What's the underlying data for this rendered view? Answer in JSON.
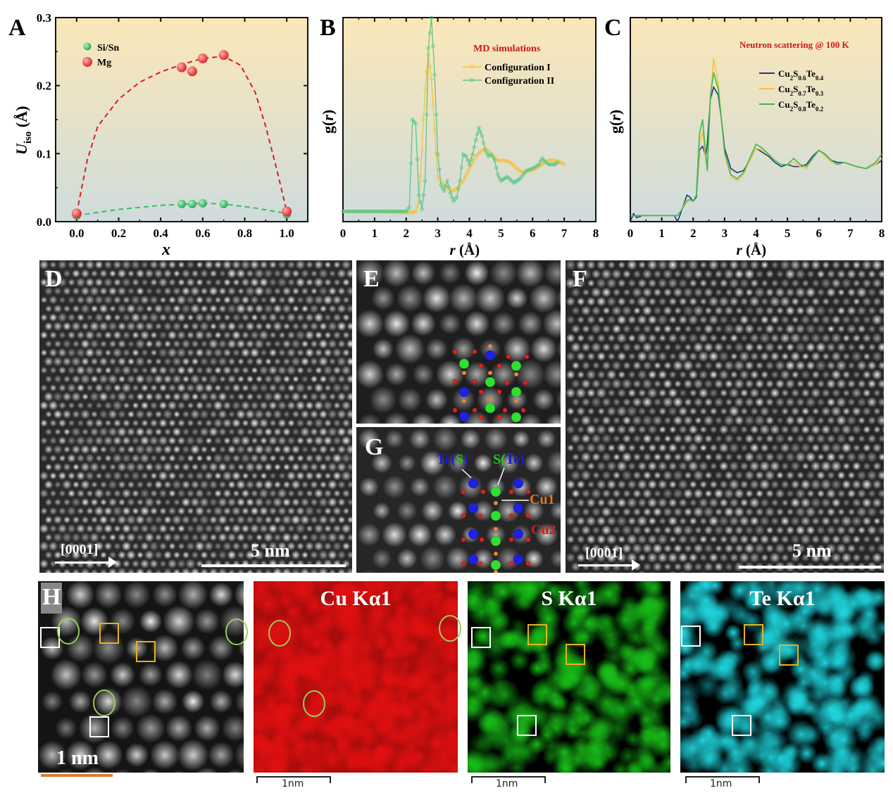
{
  "panels": {
    "A": {
      "letter": "A"
    },
    "B": {
      "letter": "B"
    },
    "C": {
      "letter": "C"
    },
    "D": {
      "letter": "D",
      "direction": "[0001]",
      "scale": "5 nm"
    },
    "E": {
      "letter": "E"
    },
    "F": {
      "letter": "F",
      "direction": "[0001]",
      "scale": "5 nm"
    },
    "G": {
      "letter": "G",
      "labels": {
        "te_s": "Te(S)",
        "s_te": "S(Te)",
        "cu1": "Cu1",
        "cu2": "Cu2"
      }
    },
    "H": {
      "letter": "H",
      "scale": "1 nm",
      "scale_small": "1nm"
    },
    "maps": [
      {
        "title": "Cu Kα1",
        "scale": "1nm",
        "color": "#e01010"
      },
      {
        "title": "S Kα1",
        "scale": "1nm",
        "color": "#18c018"
      },
      {
        "title": "Te Kα1",
        "scale": "1nm",
        "color": "#20d8e0"
      }
    ]
  },
  "colors": {
    "bg_top": "#fbe7b8",
    "bg_bottom": "#cfdcdc",
    "red": "#e03030",
    "green": "#3cba6a",
    "orange_line": "#f5c242",
    "green_line": "#5cc887",
    "navy": "#1f3a7a",
    "annot_red": "#d01818"
  },
  "chart_data": [
    {
      "id": "A",
      "type": "scatter",
      "title": "",
      "xlabel": "x",
      "ylabel": "U_iso (Å)",
      "ylabel_main": "U",
      "ylabel_sub": "iso",
      "ylabel_unit": " (Å)",
      "xlim": [
        -0.1,
        1.1
      ],
      "ylim": [
        0.0,
        0.3
      ],
      "xticks": [
        0.0,
        0.2,
        0.4,
        0.6,
        0.8,
        1.0
      ],
      "xtick_labels": [
        "0.0",
        "0.2",
        "0.4",
        "0.6",
        "0.8",
        "1.0"
      ],
      "yticks": [
        0.0,
        0.1,
        0.2,
        0.3
      ],
      "ytick_labels": [
        "0.0",
        "0.1",
        "0.2",
        "0.3"
      ],
      "legend": {
        "placement": "top-left",
        "entries": [
          "Si/Sn",
          "Mg"
        ]
      },
      "series": [
        {
          "name": "Si/Sn",
          "color": "#3cba6a",
          "x": [
            0.0,
            0.5,
            0.55,
            0.6,
            0.7,
            1.0
          ],
          "y": [
            0.009,
            0.026,
            0.026,
            0.027,
            0.026,
            0.011
          ],
          "fit_x": [
            0.0,
            0.2,
            0.4,
            0.6,
            0.7,
            0.85,
            1.0
          ],
          "fit_y": [
            0.009,
            0.018,
            0.024,
            0.027,
            0.026,
            0.02,
            0.012
          ]
        },
        {
          "name": "Mg",
          "color": "#e03030",
          "x": [
            0.0,
            0.5,
            0.55,
            0.6,
            0.7,
            1.0
          ],
          "y": [
            0.012,
            0.227,
            0.221,
            0.24,
            0.245,
            0.015
          ],
          "fit_x": [
            0.0,
            0.05,
            0.1,
            0.2,
            0.3,
            0.4,
            0.5,
            0.6,
            0.7,
            0.78,
            0.85,
            0.9,
            0.95,
            1.0
          ],
          "fit_y": [
            0.012,
            0.09,
            0.14,
            0.18,
            0.205,
            0.22,
            0.231,
            0.24,
            0.243,
            0.23,
            0.19,
            0.14,
            0.08,
            0.015
          ]
        }
      ]
    },
    {
      "id": "B",
      "type": "line",
      "title": "MD simulations",
      "xlabel": "r (Å)",
      "ylabel": "g(r)",
      "xlim": [
        0,
        8
      ],
      "ylim": [
        0,
        10
      ],
      "xticks": [
        0,
        1,
        2,
        3,
        4,
        5,
        6,
        7,
        8
      ],
      "xtick_labels": [
        "0",
        "1",
        "2",
        "3",
        "4",
        "5",
        "6",
        "7",
        "8"
      ],
      "legend": {
        "placement": "top-right",
        "entries": [
          "Configuration I",
          "Configuration II"
        ]
      },
      "series": [
        {
          "name": "Configuration I",
          "color": "#f5c242",
          "x": [
            0,
            1,
            2.0,
            2.2,
            2.3,
            2.4,
            2.5,
            2.6,
            2.7,
            2.8,
            2.9,
            3.0,
            3.2,
            3.4,
            3.6,
            3.8,
            4.0,
            4.2,
            4.4,
            4.5,
            4.7,
            4.9,
            5.1,
            5.3,
            5.5,
            5.7,
            5.9,
            6.1,
            6.3,
            6.5,
            6.7,
            6.9,
            7.0
          ],
          "y": [
            0.5,
            0.5,
            0.45,
            0.45,
            0.5,
            1.0,
            3.5,
            6.5,
            8.2,
            7.0,
            4.5,
            2.2,
            1.8,
            1.5,
            1.6,
            2.0,
            2.6,
            3.2,
            3.5,
            3.6,
            3.3,
            3.0,
            3.0,
            2.9,
            2.6,
            2.4,
            2.5,
            2.6,
            2.8,
            3.0,
            3.0,
            2.9,
            2.8
          ]
        },
        {
          "name": "Configuration II",
          "color": "#5cc887",
          "x": [
            0,
            1,
            2.0,
            2.1,
            2.2,
            2.3,
            2.4,
            2.5,
            2.6,
            2.7,
            2.8,
            2.9,
            3.0,
            3.1,
            3.2,
            3.3,
            3.4,
            3.5,
            3.6,
            3.7,
            3.8,
            3.9,
            4.0,
            4.1,
            4.2,
            4.3,
            4.4,
            4.5,
            4.6,
            4.7,
            4.8,
            4.9,
            5.0,
            5.2,
            5.4,
            5.6,
            5.8,
            6.0,
            6.2,
            6.3,
            6.5,
            6.7,
            6.8
          ],
          "y": [
            0.5,
            0.5,
            0.5,
            0.7,
            5.0,
            4.8,
            1.3,
            0.6,
            2.0,
            8.5,
            10.0,
            7.2,
            3.3,
            1.8,
            1.5,
            2.0,
            1.4,
            1.0,
            1.2,
            2.0,
            3.3,
            3.2,
            2.8,
            3.3,
            4.0,
            4.6,
            4.2,
            3.5,
            3.2,
            3.3,
            3.0,
            2.3,
            2.0,
            2.2,
            1.9,
            2.1,
            2.5,
            2.6,
            2.8,
            3.1,
            2.8,
            2.8,
            2.9
          ]
        }
      ]
    },
    {
      "id": "C",
      "type": "line",
      "title": "Neutron scattering @ 100 K",
      "xlabel": "r (Å)",
      "ylabel": "g(r)",
      "xlim": [
        0,
        8
      ],
      "ylim": [
        0,
        10
      ],
      "xticks": [
        0,
        1,
        2,
        3,
        4,
        5,
        6,
        7,
        8
      ],
      "xtick_labels": [
        "0",
        "1",
        "2",
        "3",
        "4",
        "5",
        "6",
        "7",
        "8"
      ],
      "legend": {
        "placement": "top-right",
        "entries": [
          "Cu2S0.6Te0.4",
          "Cu2S0.7Te0.3",
          "Cu2S0.8Te0.2"
        ]
      },
      "legend_rich": [
        {
          "base": "Cu",
          "s1": "2",
          "mid": "S",
          "s2": "0.6",
          "end": "Te",
          "s3": "0.4"
        },
        {
          "base": "Cu",
          "s1": "2",
          "mid": "S",
          "s2": "0.7",
          "end": "Te",
          "s3": "0.3"
        },
        {
          "base": "Cu",
          "s1": "2",
          "mid": "S",
          "s2": "0.8",
          "end": "Te",
          "s3": "0.2"
        }
      ],
      "series": [
        {
          "name": "Cu2S0.6Te0.4",
          "color": "#1f3a7a",
          "x": [
            0,
            0.1,
            0.2,
            0.4,
            0.6,
            0.8,
            1.0,
            1.2,
            1.4,
            1.5,
            1.6,
            1.8,
            1.9,
            2.0,
            2.1,
            2.2,
            2.3,
            2.4,
            2.45,
            2.55,
            2.65,
            2.8,
            2.9,
            3.0,
            3.2,
            3.4,
            3.6,
            3.8,
            4.0,
            4.2,
            4.4,
            4.6,
            4.8,
            5.0,
            5.2,
            5.4,
            5.6,
            5.8,
            6.0,
            6.2,
            6.4,
            6.6,
            6.8,
            7.0,
            7.2,
            7.5,
            7.8,
            8.0
          ],
          "y": [
            0.0,
            0.4,
            0.2,
            0.3,
            0.3,
            0.3,
            0.3,
            0.3,
            0.3,
            0.0,
            0.4,
            1.3,
            1.2,
            1.0,
            1.2,
            3.5,
            3.7,
            3.2,
            3.8,
            6.0,
            6.6,
            6.2,
            5.0,
            3.6,
            2.6,
            2.4,
            2.5,
            3.0,
            3.6,
            3.4,
            3.2,
            2.9,
            2.7,
            2.8,
            2.7,
            2.7,
            2.8,
            3.2,
            3.5,
            3.3,
            3.0,
            2.9,
            2.9,
            2.8,
            2.7,
            2.6,
            2.8,
            3.0
          ]
        },
        {
          "name": "Cu2S0.7Te0.3",
          "color": "#f5c242",
          "x": [
            0,
            0.1,
            0.2,
            0.4,
            0.6,
            0.8,
            1.0,
            1.2,
            1.4,
            1.5,
            1.6,
            1.8,
            1.9,
            2.0,
            2.1,
            2.2,
            2.3,
            2.4,
            2.45,
            2.55,
            2.65,
            2.8,
            2.9,
            3.0,
            3.2,
            3.4,
            3.6,
            3.8,
            4.0,
            4.2,
            4.4,
            4.6,
            4.8,
            5.0,
            5.2,
            5.4,
            5.6,
            5.8,
            6.0,
            6.2,
            6.4,
            6.6,
            6.8,
            7.0,
            7.2,
            7.5,
            7.8,
            8.0
          ],
          "y": [
            0.3,
            0.3,
            0.3,
            0.3,
            0.3,
            0.3,
            0.3,
            0.3,
            0.3,
            0.3,
            0.5,
            1.1,
            1.0,
            1.0,
            1.3,
            3.8,
            4.4,
            3.0,
            2.6,
            6.0,
            8.0,
            6.8,
            5.0,
            3.3,
            2.2,
            2.0,
            2.3,
            3.0,
            3.6,
            3.5,
            3.3,
            3.0,
            2.8,
            2.8,
            2.9,
            2.7,
            2.6,
            3.1,
            3.5,
            3.2,
            2.9,
            2.8,
            2.9,
            2.8,
            2.7,
            2.6,
            2.8,
            3.1
          ]
        },
        {
          "name": "Cu2S0.8Te0.2",
          "color": "#3cba50",
          "x": [
            0,
            0.1,
            0.2,
            0.4,
            0.6,
            0.8,
            1.0,
            1.2,
            1.4,
            1.5,
            1.6,
            1.8,
            1.9,
            2.0,
            2.1,
            2.2,
            2.3,
            2.4,
            2.45,
            2.55,
            2.65,
            2.8,
            2.9,
            3.0,
            3.2,
            3.4,
            3.6,
            3.8,
            4.0,
            4.2,
            4.4,
            4.6,
            4.8,
            5.0,
            5.2,
            5.4,
            5.6,
            5.8,
            6.0,
            6.2,
            6.4,
            6.6,
            6.8,
            7.0,
            7.2,
            7.5,
            7.8,
            8.0
          ],
          "y": [
            0.3,
            0.3,
            0.3,
            0.3,
            0.3,
            0.3,
            0.3,
            0.3,
            0.3,
            0.3,
            0.5,
            1.0,
            1.1,
            1.0,
            1.3,
            4.3,
            5.0,
            3.3,
            2.5,
            6.2,
            7.3,
            6.5,
            5.0,
            3.4,
            2.3,
            2.1,
            2.4,
            3.1,
            3.8,
            3.6,
            3.3,
            3.0,
            2.8,
            2.8,
            3.1,
            2.8,
            2.7,
            3.1,
            3.5,
            3.3,
            3.0,
            2.8,
            2.9,
            2.8,
            2.7,
            2.6,
            2.9,
            3.3
          ]
        }
      ]
    }
  ]
}
